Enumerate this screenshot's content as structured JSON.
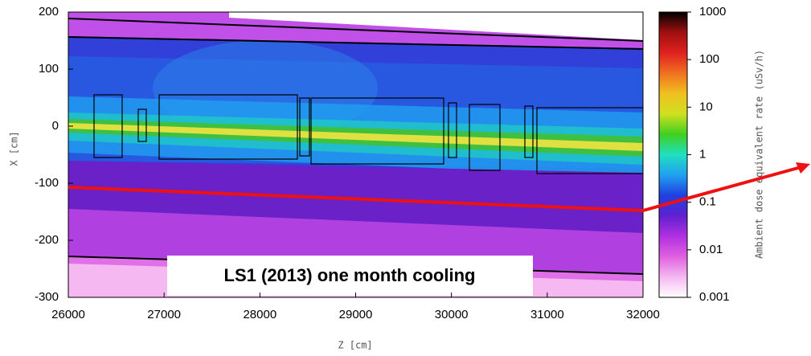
{
  "chart_data": {
    "type": "heatmap",
    "xlabel": "Z [cm]",
    "ylabel": "X [cm]",
    "xlim": [
      26000,
      32000
    ],
    "xticks": [
      26000,
      27000,
      28000,
      29000,
      30000,
      31000,
      32000
    ],
    "ylim": [
      -300,
      200
    ],
    "yticks": [
      -300,
      -200,
      -100,
      0,
      100,
      200
    ],
    "colorbar": {
      "label": "Ambient dose equivalent rate (uSv/h)",
      "scale": "log",
      "lim": [
        0.001,
        1000
      ],
      "ticks": [
        0.001,
        0.01,
        0.1,
        1,
        10,
        100,
        1000
      ],
      "colors": [
        "#ffffff",
        "#f5b8f0",
        "#e060e0",
        "#b030e0",
        "#6020d0",
        "#2040e0",
        "#20a0f0",
        "#20e0c0",
        "#40d020",
        "#d0e020",
        "#f0c020",
        "#f07020",
        "#e02020",
        "#a01010",
        "#000000"
      ]
    },
    "annotation": "LS1 (2013) one month cooling"
  }
}
